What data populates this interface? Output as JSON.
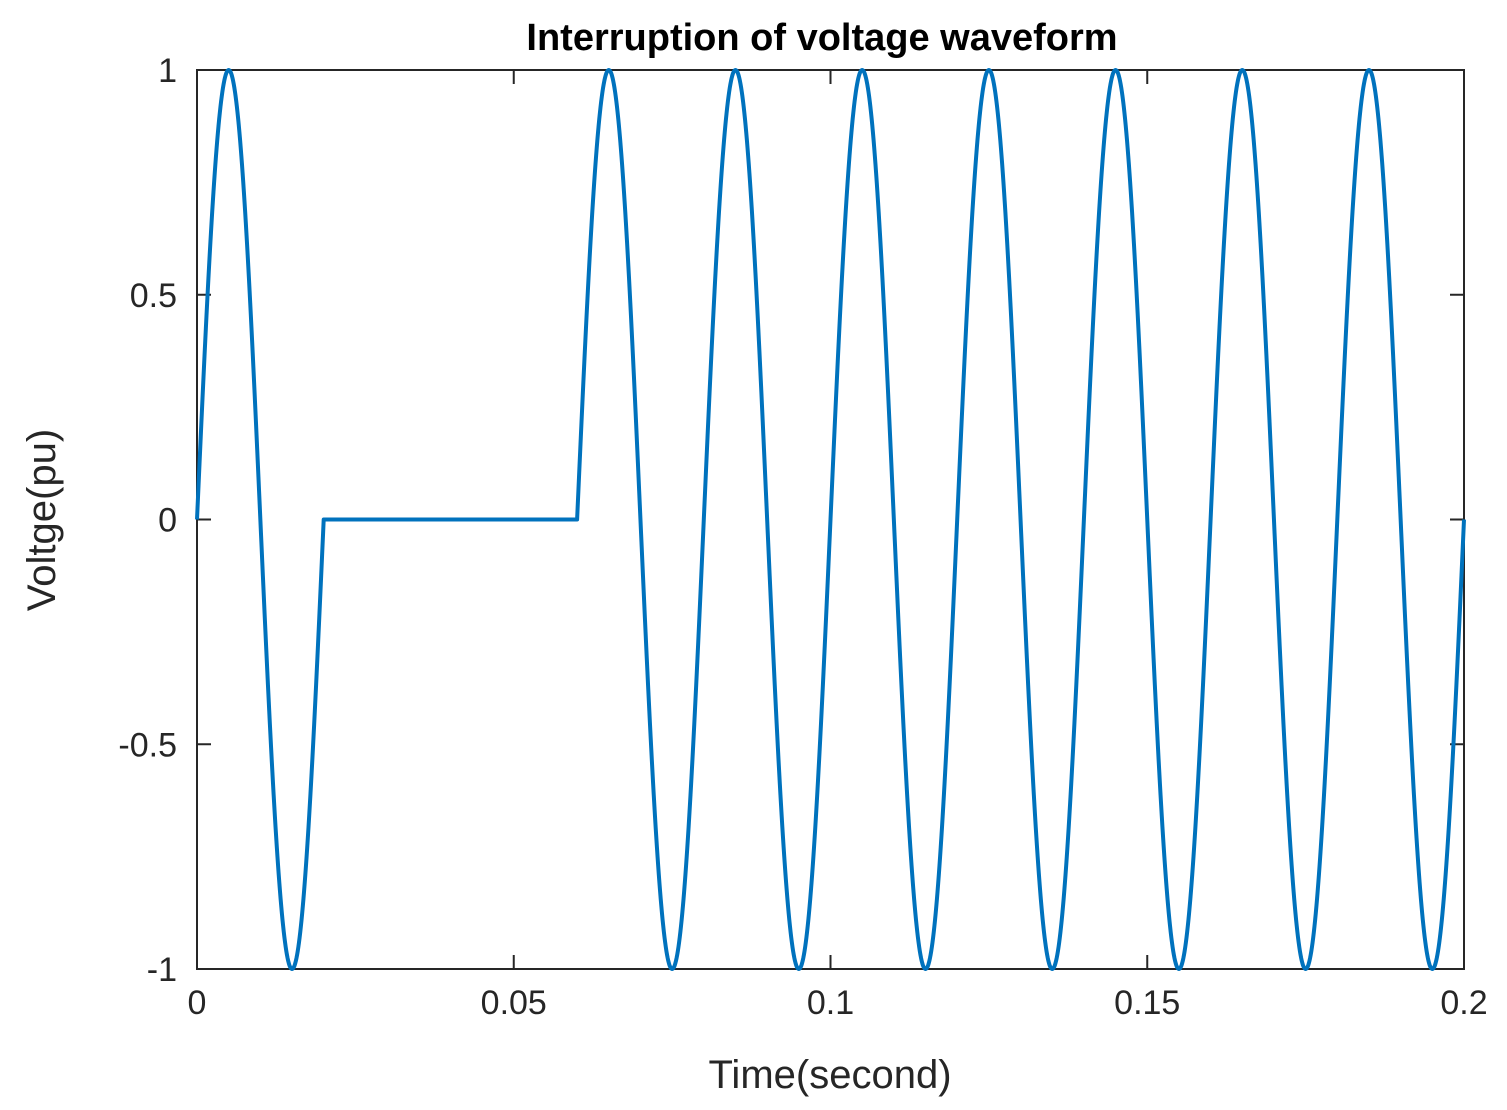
{
  "chart_data": {
    "type": "line",
    "title": "Interruption of voltage waveform",
    "xlabel": "Time(second)",
    "ylabel": "Voltge(pu)",
    "xlim": [
      0,
      0.2
    ],
    "ylim": [
      -1,
      1
    ],
    "x_ticks": [
      0,
      0.05,
      0.1,
      0.15,
      0.2
    ],
    "x_tick_labels": [
      "0",
      "0.05",
      "0.1",
      "0.15",
      "0.2"
    ],
    "y_ticks": [
      -1,
      -0.5,
      0,
      0.5,
      1
    ],
    "y_tick_labels": [
      "-1",
      "-0.5",
      "0",
      "0.5",
      "1"
    ],
    "grid": false,
    "line_color": "#0072BD",
    "series": [
      {
        "function": "sine",
        "amplitude": 1,
        "frequency_hz": 50,
        "interruption": {
          "start": 0.02,
          "end": 0.06,
          "value": 0
        },
        "x_start": 0,
        "x_end": 0.2
      }
    ]
  }
}
